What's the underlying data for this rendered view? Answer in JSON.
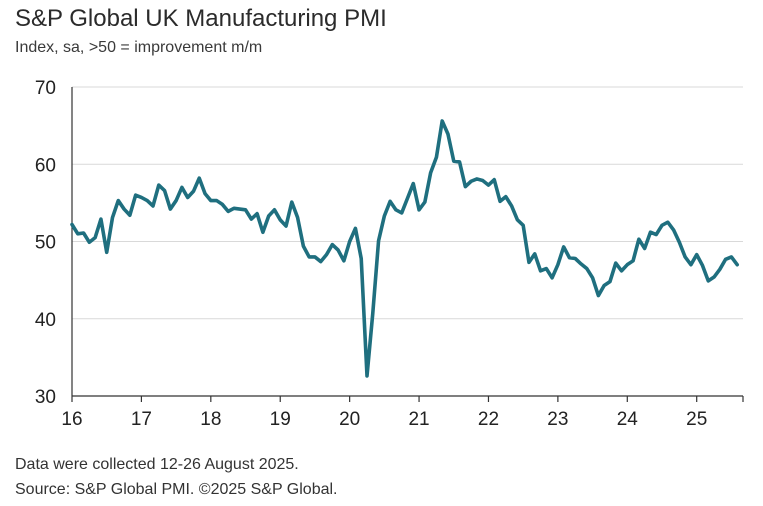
{
  "header": {
    "title": "S&P Global UK Manufacturing PMI",
    "subtitle": "Index, sa, >50 = improvement m/m"
  },
  "footer": {
    "note": "Data were collected 12-26 August 2025.",
    "source": "Source: S&P Global PMI. ©2025 S&P Global."
  },
  "colors": {
    "line": "#1f6f7f",
    "grid": "#d9d9d9",
    "axis": "#333333"
  },
  "chart_data": {
    "type": "line",
    "title": "S&P Global UK Manufacturing PMI",
    "subtitle": "Index, sa, >50 = improvement m/m",
    "xlabel": "",
    "ylabel": "",
    "ylim": [
      30,
      70
    ],
    "xlim": [
      2016,
      2025.667
    ],
    "yticks": [
      "30",
      "40",
      "50",
      "60",
      "70"
    ],
    "xticks": [
      {
        "label": "16",
        "x": 2016
      },
      {
        "label": "17",
        "x": 2017
      },
      {
        "label": "18",
        "x": 2018
      },
      {
        "label": "19",
        "x": 2019
      },
      {
        "label": "20",
        "x": 2020
      },
      {
        "label": "21",
        "x": 2021
      },
      {
        "label": "22",
        "x": 2022
      },
      {
        "label": "23",
        "x": 2023
      },
      {
        "label": "24",
        "x": 2024
      },
      {
        "label": "25",
        "x": 2025
      }
    ],
    "grid": "horizontal",
    "series": [
      {
        "start": "2016-01",
        "frequency": "monthly",
        "values": [
          52.2,
          51.0,
          51.1,
          49.9,
          50.5,
          52.9,
          48.6,
          53.1,
          55.3,
          54.2,
          53.4,
          56.0,
          55.7,
          55.3,
          54.6,
          57.3,
          56.6,
          54.2,
          55.3,
          57.0,
          55.7,
          56.5,
          58.2,
          56.2,
          55.3,
          55.3,
          54.8,
          53.9,
          54.3,
          54.2,
          54.1,
          52.9,
          53.6,
          51.2,
          53.3,
          54.1,
          52.8,
          52.0,
          55.1,
          53.1,
          49.4,
          48.0,
          48.0,
          47.4,
          48.3,
          49.6,
          48.9,
          47.5,
          50.0,
          51.7,
          47.8,
          32.6,
          40.7,
          50.1,
          53.3,
          55.2,
          54.1,
          53.7,
          55.6,
          57.5,
          54.1,
          55.1,
          58.9,
          60.9,
          65.6,
          63.9,
          60.4,
          60.3,
          57.1,
          57.8,
          58.1,
          57.9,
          57.3,
          58.0,
          55.2,
          55.8,
          54.6,
          52.8,
          52.1,
          47.3,
          48.4,
          46.2,
          46.5,
          45.3,
          47.0,
          49.3,
          47.9,
          47.8,
          47.1,
          46.5,
          45.3,
          43.0,
          44.3,
          44.8,
          47.2,
          46.2,
          47.0,
          47.5,
          50.3,
          49.1,
          51.2,
          50.9,
          52.1,
          52.5,
          51.5,
          49.9,
          48.0,
          47.0,
          48.3,
          46.9,
          44.9,
          45.4,
          46.4,
          47.7,
          48.0,
          47.0
        ]
      }
    ]
  }
}
